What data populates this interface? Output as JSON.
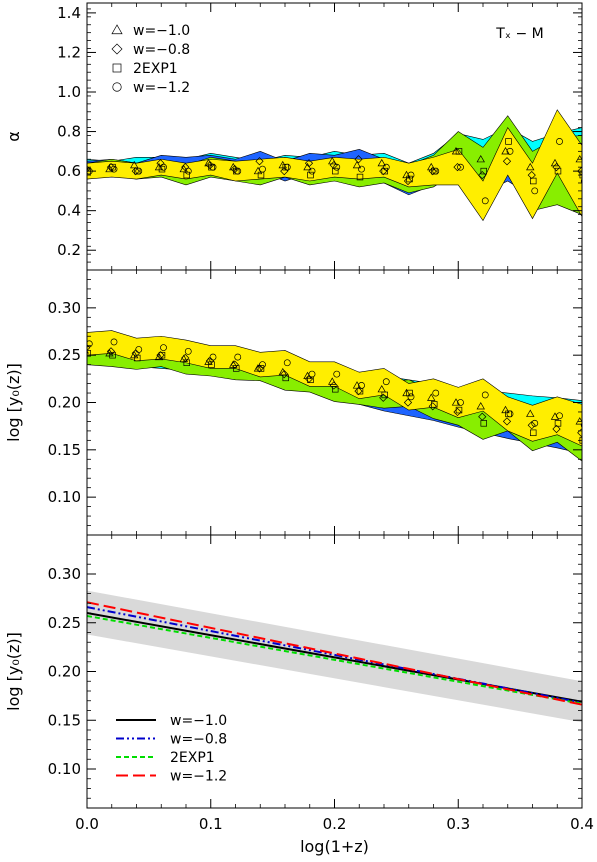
{
  "chart_data": [
    {
      "type": "area",
      "panel": "top",
      "annotation": "Tₓ − M",
      "ylabel": "α",
      "ylim": [
        0.1,
        1.45
      ],
      "yticks": [
        0.2,
        0.4,
        0.6,
        0.8,
        1.0,
        1.2,
        1.4
      ],
      "xlim": [
        0.0,
        0.4
      ],
      "legend_position": "top-left",
      "legend": [
        {
          "marker": "triangle",
          "label": "w=−1.0"
        },
        {
          "marker": "diamond",
          "label": "w=−0.8"
        },
        {
          "marker": "square",
          "label": "2EXP1"
        },
        {
          "marker": "circle",
          "label": "w=−1.2"
        }
      ],
      "x": [
        0.0,
        0.02,
        0.04,
        0.06,
        0.08,
        0.1,
        0.12,
        0.14,
        0.16,
        0.18,
        0.2,
        0.22,
        0.24,
        0.26,
        0.28,
        0.3,
        0.32,
        0.34,
        0.36,
        0.38,
        0.4
      ],
      "series": [
        {
          "name": "w=−1.0",
          "color": "#00ffff",
          "center": [
            0.62,
            0.61,
            0.63,
            0.62,
            0.61,
            0.64,
            0.62,
            0.6,
            0.63,
            0.62,
            0.65,
            0.63,
            0.64,
            0.58,
            0.62,
            0.7,
            0.66,
            0.7,
            0.62,
            0.64,
            0.66
          ],
          "halfwidth": [
            0.04,
            0.04,
            0.04,
            0.05,
            0.05,
            0.05,
            0.05,
            0.05,
            0.05,
            0.05,
            0.05,
            0.05,
            0.05,
            0.06,
            0.07,
            0.09,
            0.1,
            0.12,
            0.13,
            0.15,
            0.16
          ]
        },
        {
          "name": "w=−0.8",
          "color": "#1e64ff",
          "center": [
            0.61,
            0.62,
            0.6,
            0.64,
            0.62,
            0.63,
            0.61,
            0.65,
            0.6,
            0.64,
            0.63,
            0.66,
            0.6,
            0.55,
            0.6,
            0.62,
            0.58,
            0.65,
            0.58,
            0.62,
            0.6
          ],
          "halfwidth": [
            0.04,
            0.04,
            0.04,
            0.04,
            0.05,
            0.05,
            0.05,
            0.05,
            0.05,
            0.05,
            0.05,
            0.05,
            0.06,
            0.07,
            0.07,
            0.08,
            0.09,
            0.1,
            0.11,
            0.12,
            0.13
          ]
        },
        {
          "name": "2EXP1",
          "color": "#88ee00",
          "center": [
            0.6,
            0.62,
            0.6,
            0.61,
            0.58,
            0.62,
            0.6,
            0.58,
            0.62,
            0.58,
            0.6,
            0.57,
            0.6,
            0.56,
            0.6,
            0.7,
            0.6,
            0.75,
            0.55,
            0.6,
            0.58
          ],
          "halfwidth": [
            0.04,
            0.04,
            0.04,
            0.04,
            0.05,
            0.05,
            0.05,
            0.05,
            0.05,
            0.05,
            0.05,
            0.05,
            0.06,
            0.07,
            0.08,
            0.1,
            0.12,
            0.13,
            0.15,
            0.17,
            0.2
          ]
        },
        {
          "name": "w=−1.2",
          "color": "#ffee00",
          "center": [
            0.6,
            0.61,
            0.6,
            0.62,
            0.6,
            0.62,
            0.6,
            0.61,
            0.62,
            0.6,
            0.62,
            0.61,
            0.62,
            0.58,
            0.6,
            0.62,
            0.45,
            0.7,
            0.5,
            0.75,
            0.55
          ],
          "halfwidth": [
            0.04,
            0.04,
            0.04,
            0.04,
            0.04,
            0.04,
            0.05,
            0.05,
            0.05,
            0.05,
            0.05,
            0.05,
            0.05,
            0.06,
            0.07,
            0.09,
            0.1,
            0.12,
            0.14,
            0.16,
            0.18
          ]
        }
      ]
    },
    {
      "type": "area",
      "panel": "middle",
      "ylabel": "log [y₀(z)]",
      "ylim": [
        0.06,
        0.34
      ],
      "yticks": [
        0.1,
        0.15,
        0.2,
        0.25,
        0.3
      ],
      "xlim": [
        0.0,
        0.4
      ],
      "x": [
        0.0,
        0.02,
        0.04,
        0.06,
        0.08,
        0.1,
        0.12,
        0.14,
        0.16,
        0.18,
        0.2,
        0.22,
        0.24,
        0.26,
        0.28,
        0.3,
        0.32,
        0.34,
        0.36,
        0.38,
        0.4
      ],
      "series": [
        {
          "name": "w=−1.0",
          "color": "#00ffff",
          "center": [
            0.255,
            0.252,
            0.25,
            0.248,
            0.246,
            0.243,
            0.24,
            0.236,
            0.232,
            0.228,
            0.222,
            0.218,
            0.214,
            0.21,
            0.205,
            0.2,
            0.196,
            0.192,
            0.188,
            0.185,
            0.18
          ],
          "halfwidth": [
            0.012,
            0.012,
            0.012,
            0.012,
            0.012,
            0.012,
            0.012,
            0.013,
            0.013,
            0.013,
            0.013,
            0.014,
            0.014,
            0.014,
            0.015,
            0.016,
            0.017,
            0.018,
            0.019,
            0.02,
            0.022
          ]
        },
        {
          "name": "w=−0.8",
          "color": "#1e64ff",
          "center": [
            0.258,
            0.254,
            0.252,
            0.25,
            0.247,
            0.244,
            0.24,
            0.236,
            0.23,
            0.225,
            0.218,
            0.212,
            0.205,
            0.2,
            0.196,
            0.19,
            0.185,
            0.18,
            0.176,
            0.172,
            0.168
          ],
          "halfwidth": [
            0.012,
            0.012,
            0.012,
            0.012,
            0.012,
            0.012,
            0.012,
            0.013,
            0.013,
            0.013,
            0.013,
            0.014,
            0.014,
            0.014,
            0.015,
            0.016,
            0.017,
            0.018,
            0.019,
            0.02,
            0.022
          ]
        },
        {
          "name": "2EXP1",
          "color": "#88ee00",
          "center": [
            0.252,
            0.25,
            0.247,
            0.25,
            0.242,
            0.24,
            0.236,
            0.236,
            0.226,
            0.224,
            0.214,
            0.212,
            0.208,
            0.21,
            0.198,
            0.192,
            0.178,
            0.188,
            0.168,
            0.178,
            0.16
          ],
          "halfwidth": [
            0.012,
            0.012,
            0.012,
            0.012,
            0.012,
            0.012,
            0.012,
            0.013,
            0.013,
            0.013,
            0.013,
            0.014,
            0.014,
            0.014,
            0.015,
            0.016,
            0.017,
            0.018,
            0.019,
            0.02,
            0.022
          ]
        },
        {
          "name": "w=−1.2",
          "color": "#ffee00",
          "center": [
            0.262,
            0.264,
            0.256,
            0.258,
            0.254,
            0.248,
            0.248,
            0.24,
            0.242,
            0.23,
            0.23,
            0.218,
            0.222,
            0.206,
            0.21,
            0.2,
            0.208,
            0.188,
            0.178,
            0.186,
            0.176
          ],
          "halfwidth": [
            0.012,
            0.012,
            0.012,
            0.012,
            0.012,
            0.012,
            0.012,
            0.013,
            0.013,
            0.013,
            0.013,
            0.014,
            0.014,
            0.014,
            0.015,
            0.016,
            0.017,
            0.018,
            0.019,
            0.02,
            0.022
          ]
        }
      ]
    },
    {
      "type": "line",
      "panel": "bottom",
      "xlabel": "log(1+z)",
      "ylabel": "log [y₀(z)]",
      "xlim": [
        0.0,
        0.4
      ],
      "ylim": [
        0.06,
        0.34
      ],
      "xticks": [
        0.0,
        0.1,
        0.2,
        0.3,
        0.4
      ],
      "xticklabels": [
        "0.0",
        "0.1",
        "0.2",
        "0.3",
        "0.4"
      ],
      "yticks": [
        0.1,
        0.15,
        0.2,
        0.25,
        0.3
      ],
      "legend_position": "bottom-left",
      "band": {
        "color": "#d9d9d9",
        "x": [
          0.0,
          0.4
        ],
        "lower": [
          0.238,
          0.148
        ],
        "upper": [
          0.283,
          0.19
        ]
      },
      "series": [
        {
          "name": "w=−1.0",
          "color": "#000000",
          "dash": "",
          "x": [
            0.0,
            0.4
          ],
          "y": [
            0.26,
            0.169
          ]
        },
        {
          "name": "w=−0.8",
          "color": "#0000cc",
          "dash": "8,3,2,3,2,3",
          "x": [
            0.0,
            0.4
          ],
          "y": [
            0.266,
            0.168
          ]
        },
        {
          "name": "2EXP1",
          "color": "#00dd00",
          "dash": "5,3",
          "x": [
            0.0,
            0.4
          ],
          "y": [
            0.257,
            0.167
          ]
        },
        {
          "name": "w=−1.2",
          "color": "#ff0000",
          "dash": "12,5",
          "x": [
            0.0,
            0.4
          ],
          "y": [
            0.271,
            0.166
          ]
        }
      ]
    }
  ]
}
